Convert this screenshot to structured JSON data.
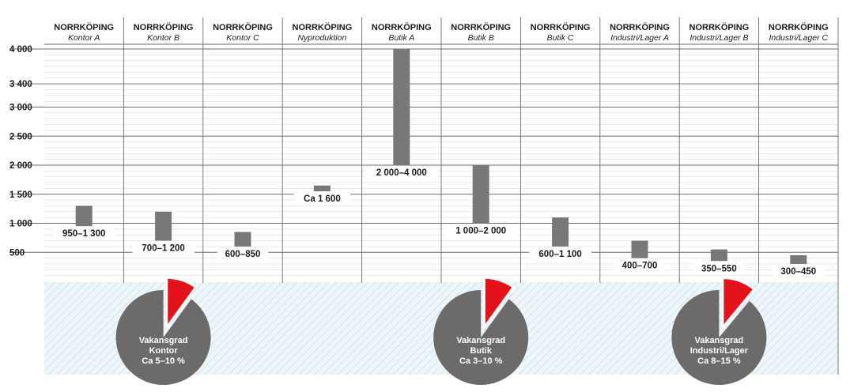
{
  "chart_data": {
    "type": "bar",
    "bar_style": "floating-range",
    "categories": [
      {
        "city": "NORRKÖPING",
        "sub": "Kontor A"
      },
      {
        "city": "NORRKÖPING",
        "sub": "Kontor B"
      },
      {
        "city": "NORRKÖPING",
        "sub": "Kontor C"
      },
      {
        "city": "NORRKÖPING",
        "sub": "Nyproduktion"
      },
      {
        "city": "NORRKÖPING",
        "sub": "Butik A"
      },
      {
        "city": "NORRKÖPING",
        "sub": "Butik B"
      },
      {
        "city": "NORRKÖPING",
        "sub": "Butik C"
      },
      {
        "city": "NORRKÖPING",
        "sub": "Industri/Lager A"
      },
      {
        "city": "NORRKÖPING",
        "sub": "Industri/Lager B"
      },
      {
        "city": "NORRKÖPING",
        "sub": "Industri/Lager C"
      }
    ],
    "ranges": [
      {
        "low": 950,
        "high": 1300,
        "label": "950–1 300"
      },
      {
        "low": 700,
        "high": 1200,
        "label": "700–1 200"
      },
      {
        "low": 600,
        "high": 850,
        "label": "600–850"
      },
      {
        "low": 1550,
        "high": 1650,
        "label": "Ca 1 600"
      },
      {
        "low": 2000,
        "high": 4000,
        "label": "2 000–4 000"
      },
      {
        "low": 1000,
        "high": 2000,
        "label": "1 000–2 000"
      },
      {
        "low": 600,
        "high": 1100,
        "label": "600–1 100"
      },
      {
        "low": 400,
        "high": 700,
        "label": "400–700"
      },
      {
        "low": 350,
        "high": 550,
        "label": "350–550"
      },
      {
        "low": 300,
        "high": 450,
        "label": "300–450"
      }
    ],
    "y_ticks": [
      {
        "value": 500,
        "label": "500"
      },
      {
        "value": 1000,
        "label": "1 000"
      },
      {
        "value": 1500,
        "label": "1 500"
      },
      {
        "value": 2000,
        "label": "2 000"
      },
      {
        "value": 2500,
        "label": "2 500"
      },
      {
        "value": 3000,
        "label": "3 000"
      },
      {
        "value": 3400,
        "label": "3 400"
      },
      {
        "value": 4000,
        "label": "4 000"
      }
    ],
    "ylim": [
      0,
      4000
    ],
    "grid": true,
    "bar_color": "#7a7876",
    "pies": [
      {
        "title": "Vakansgrad",
        "category": "Kontor",
        "range_label": "Ca 5–10 %",
        "vacancy_fraction": 0.1,
        "under": "Kontor B"
      },
      {
        "title": "Vakansgrad",
        "category": "Butik",
        "range_label": "Ca 3–10 %",
        "vacancy_fraction": 0.1,
        "under": "Butik B"
      },
      {
        "title": "Vakansgrad",
        "category": "Industri/Lager",
        "range_label": "Ca 8–15 %",
        "vacancy_fraction": 0.11,
        "under": "Industri/Lager B"
      }
    ],
    "pie_colors": {
      "base": "#6d6b69",
      "highlight": "#e3121b"
    }
  }
}
